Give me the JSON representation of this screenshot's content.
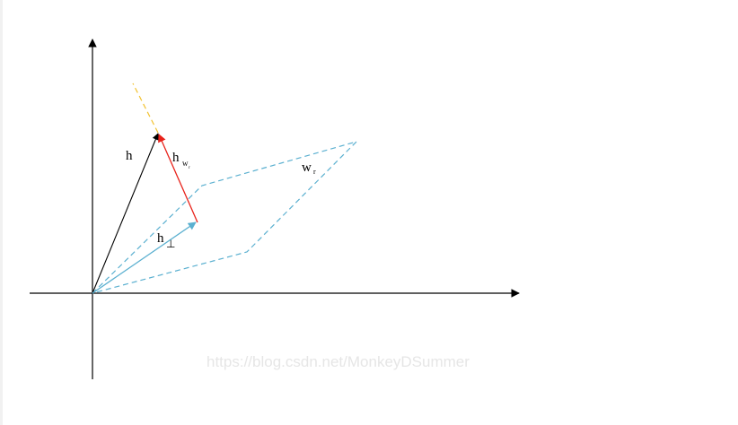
{
  "labels": {
    "h": "h",
    "h_w_base": "h",
    "h_w_sub": "w",
    "h_w_subsub": "r",
    "h_perp_base": "h",
    "h_perp_sub": "⊥",
    "w_base": "w",
    "w_sub": "r"
  },
  "watermark": "https://blog.csdn.net/MonkeyDSummer",
  "colors": {
    "axis": "#000000",
    "h_vector": "#000000",
    "h_w_vector": "#e8221a",
    "h_perp_vector": "#5bb0d0",
    "plane": "#5bb0d0",
    "extension": "#f2c230",
    "watermark": "#e6e6e6"
  }
}
